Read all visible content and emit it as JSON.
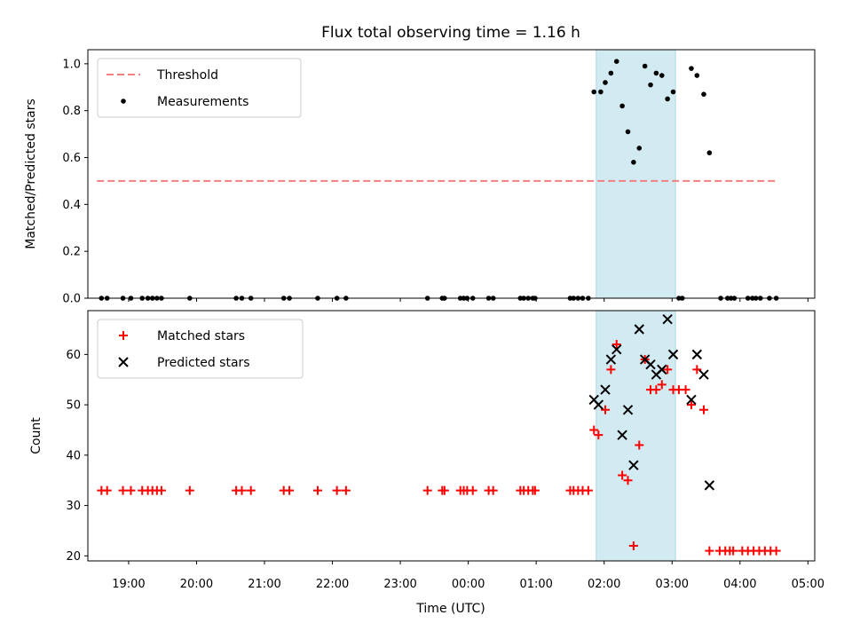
{
  "title": "Flux total observing time = 1.16 h",
  "xlabel": "Time (UTC)",
  "colors": {
    "threshold": "#f08080",
    "measurement": "#000000",
    "matched": "#ff0000",
    "predicted": "#000000",
    "span_fill": "#add8e6"
  },
  "chart_data": [
    {
      "type": "scatter",
      "panel": "top",
      "ylabel": "Matched/Predicted stars",
      "xlim": [
        "18:24",
        "05:06"
      ],
      "ylim": [
        0,
        1.06
      ],
      "yticks": [
        0.0,
        0.2,
        0.4,
        0.6,
        0.8,
        1.0
      ],
      "xticks": [
        "19:00",
        "20:00",
        "21:00",
        "22:00",
        "23:00",
        "00:00",
        "01:00",
        "02:00",
        "03:00",
        "04:00",
        "05:00"
      ],
      "highlight_span": [
        "01:53",
        "03:03"
      ],
      "legend": {
        "placement": "upper-left",
        "entries": [
          "Threshold",
          "Measurements"
        ]
      },
      "threshold": {
        "name": "Threshold",
        "value": 0.5,
        "x_range": [
          "18:32",
          "04:34"
        ],
        "style": "dashed"
      },
      "series": [
        {
          "name": "Measurements",
          "marker": "dot",
          "points": [
            [
              "18:36",
              0
            ],
            [
              "18:41",
              0
            ],
            [
              "18:55",
              0
            ],
            [
              "19:02",
              0
            ],
            [
              "19:12",
              0
            ],
            [
              "19:17",
              0
            ],
            [
              "19:21",
              0
            ],
            [
              "19:25",
              0
            ],
            [
              "19:29",
              0
            ],
            [
              "19:54",
              0
            ],
            [
              "20:35",
              0
            ],
            [
              "20:40",
              0
            ],
            [
              "20:48",
              0
            ],
            [
              "21:17",
              0
            ],
            [
              "21:22",
              0
            ],
            [
              "21:47",
              0
            ],
            [
              "22:04",
              0
            ],
            [
              "22:12",
              0
            ],
            [
              "23:24",
              0
            ],
            [
              "23:37",
              0
            ],
            [
              "23:39",
              0
            ],
            [
              "23:53",
              0
            ],
            [
              "23:56",
              0
            ],
            [
              "23:59",
              0
            ],
            [
              "00:04",
              0
            ],
            [
              "00:18",
              0
            ],
            [
              "00:22",
              0
            ],
            [
              "00:46",
              0
            ],
            [
              "00:49",
              0
            ],
            [
              "00:53",
              0
            ],
            [
              "00:57",
              0
            ],
            [
              "00:59",
              0
            ],
            [
              "01:30",
              0
            ],
            [
              "01:33",
              0
            ],
            [
              "01:37",
              0
            ],
            [
              "01:41",
              0
            ],
            [
              "01:46",
              0
            ],
            [
              "01:51",
              0.88
            ],
            [
              "01:57",
              0.88
            ],
            [
              "02:01",
              0.92
            ],
            [
              "02:06",
              0.96
            ],
            [
              "02:11",
              1.01
            ],
            [
              "02:16",
              0.82
            ],
            [
              "02:21",
              0.71
            ],
            [
              "02:26",
              0.58
            ],
            [
              "02:31",
              0.64
            ],
            [
              "02:36",
              0.99
            ],
            [
              "02:41",
              0.91
            ],
            [
              "02:46",
              0.96
            ],
            [
              "02:51",
              0.95
            ],
            [
              "02:56",
              0.85
            ],
            [
              "03:01",
              0.88
            ],
            [
              "03:06",
              0
            ],
            [
              "03:09",
              0
            ],
            [
              "03:17",
              0.98
            ],
            [
              "03:22",
              0.95
            ],
            [
              "03:28",
              0.87
            ],
            [
              "03:33",
              0.62
            ],
            [
              "03:43",
              0
            ],
            [
              "03:49",
              0
            ],
            [
              "03:52",
              0
            ],
            [
              "03:55",
              0
            ],
            [
              "04:07",
              0
            ],
            [
              "04:11",
              0
            ],
            [
              "04:14",
              0
            ],
            [
              "04:18",
              0
            ],
            [
              "04:26",
              0
            ],
            [
              "04:32",
              0
            ]
          ]
        }
      ]
    },
    {
      "type": "scatter",
      "panel": "bottom",
      "ylabel": "Count",
      "xlim": [
        "18:24",
        "05:06"
      ],
      "ylim": [
        19,
        68.7
      ],
      "yticks": [
        20,
        30,
        40,
        50,
        60
      ],
      "xticks": [
        "19:00",
        "20:00",
        "21:00",
        "22:00",
        "23:00",
        "00:00",
        "01:00",
        "02:00",
        "03:00",
        "04:00",
        "05:00"
      ],
      "highlight_span": [
        "01:53",
        "03:03"
      ],
      "legend": {
        "placement": "upper-left",
        "entries": [
          "Matched stars",
          "Predicted stars"
        ]
      },
      "series": [
        {
          "name": "Matched stars",
          "marker": "plus",
          "points": [
            [
              "18:36",
              33
            ],
            [
              "18:41",
              33
            ],
            [
              "18:55",
              33
            ],
            [
              "19:02",
              33
            ],
            [
              "19:12",
              33
            ],
            [
              "19:17",
              33
            ],
            [
              "19:21",
              33
            ],
            [
              "19:25",
              33
            ],
            [
              "19:29",
              33
            ],
            [
              "19:54",
              33
            ],
            [
              "20:35",
              33
            ],
            [
              "20:40",
              33
            ],
            [
              "20:48",
              33
            ],
            [
              "21:17",
              33
            ],
            [
              "21:22",
              33
            ],
            [
              "21:47",
              33
            ],
            [
              "22:04",
              33
            ],
            [
              "22:12",
              33
            ],
            [
              "23:24",
              33
            ],
            [
              "23:37",
              33
            ],
            [
              "23:39",
              33
            ],
            [
              "23:53",
              33
            ],
            [
              "23:56",
              33
            ],
            [
              "23:59",
              33
            ],
            [
              "00:04",
              33
            ],
            [
              "00:18",
              33
            ],
            [
              "00:22",
              33
            ],
            [
              "00:46",
              33
            ],
            [
              "00:49",
              33
            ],
            [
              "00:53",
              33
            ],
            [
              "00:57",
              33
            ],
            [
              "00:59",
              33
            ],
            [
              "01:30",
              33
            ],
            [
              "01:33",
              33
            ],
            [
              "01:37",
              33
            ],
            [
              "01:41",
              33
            ],
            [
              "01:46",
              33
            ],
            [
              "01:51",
              45
            ],
            [
              "01:55",
              44
            ],
            [
              "02:01",
              49
            ],
            [
              "02:06",
              57
            ],
            [
              "02:11",
              62
            ],
            [
              "02:16",
              36
            ],
            [
              "02:21",
              35
            ],
            [
              "02:26",
              22
            ],
            [
              "02:31",
              42
            ],
            [
              "02:36",
              59
            ],
            [
              "02:41",
              53
            ],
            [
              "02:46",
              53
            ],
            [
              "02:51",
              54
            ],
            [
              "02:56",
              57
            ],
            [
              "03:01",
              53
            ],
            [
              "03:06",
              53
            ],
            [
              "03:12",
              53
            ],
            [
              "03:17",
              50
            ],
            [
              "03:22",
              57
            ],
            [
              "03:28",
              49
            ],
            [
              "03:33",
              21
            ],
            [
              "03:42",
              21
            ],
            [
              "03:47",
              21
            ],
            [
              "03:51",
              21
            ],
            [
              "03:54",
              21
            ],
            [
              "04:02",
              21
            ],
            [
              "04:07",
              21
            ],
            [
              "04:12",
              21
            ],
            [
              "04:17",
              21
            ],
            [
              "04:22",
              21
            ],
            [
              "04:27",
              21
            ],
            [
              "04:32",
              21
            ]
          ]
        },
        {
          "name": "Predicted stars",
          "marker": "x",
          "points": [
            [
              "01:51",
              51
            ],
            [
              "01:55",
              50
            ],
            [
              "02:01",
              53
            ],
            [
              "02:06",
              59
            ],
            [
              "02:11",
              61
            ],
            [
              "02:16",
              44
            ],
            [
              "02:21",
              49
            ],
            [
              "02:26",
              38
            ],
            [
              "02:31",
              65
            ],
            [
              "02:36",
              59
            ],
            [
              "02:41",
              58
            ],
            [
              "02:46",
              56
            ],
            [
              "02:51",
              57
            ],
            [
              "02:56",
              67
            ],
            [
              "03:01",
              60
            ],
            [
              "03:17",
              51
            ],
            [
              "03:22",
              60
            ],
            [
              "03:28",
              56
            ],
            [
              "03:33",
              34
            ]
          ]
        }
      ]
    }
  ]
}
